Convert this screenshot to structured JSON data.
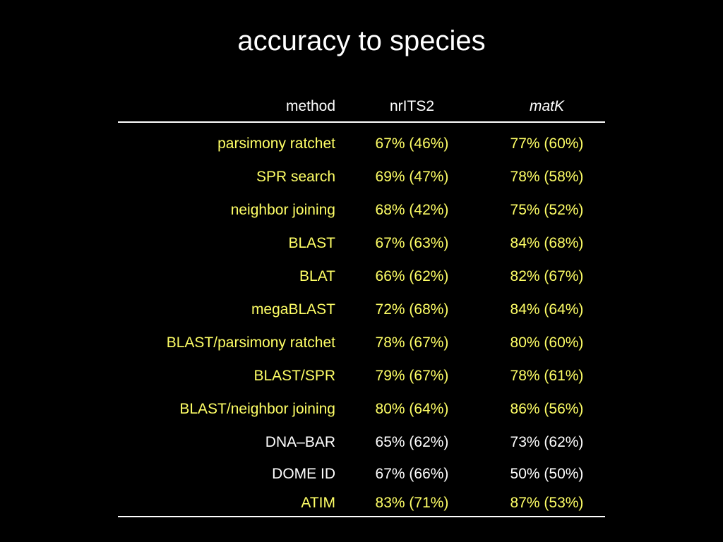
{
  "title": "accuracy to species",
  "colors": {
    "background": "#000000",
    "white_text": "#ffffff",
    "highlight_text": "#ffff66"
  },
  "table": {
    "headers": [
      "method",
      "nrITS2",
      "matK"
    ],
    "rows": [
      {
        "method": "parsimony ratchet",
        "nrITS2": "67% (46%)",
        "matK": "77% (60%)",
        "color": "yellow"
      },
      {
        "method": "SPR search",
        "nrITS2": "69% (47%)",
        "matK": "78% (58%)",
        "color": "yellow"
      },
      {
        "method": "neighbor joining",
        "nrITS2": "68% (42%)",
        "matK": "75% (52%)",
        "color": "yellow"
      },
      {
        "method": "BLAST",
        "nrITS2": "67% (63%)",
        "matK": "84% (68%)",
        "color": "yellow"
      },
      {
        "method": "BLAT",
        "nrITS2": "66% (62%)",
        "matK": "82% (67%)",
        "color": "yellow"
      },
      {
        "method": "megaBLAST",
        "nrITS2": "72% (68%)",
        "matK": "84% (64%)",
        "color": "yellow"
      },
      {
        "method": "BLAST/parsimony ratchet",
        "nrITS2": "78% (67%)",
        "matK": "80% (60%)",
        "color": "yellow"
      },
      {
        "method": "BLAST/SPR",
        "nrITS2": "79% (67%)",
        "matK": "78% (61%)",
        "color": "yellow"
      },
      {
        "method": "BLAST/neighbor joining",
        "nrITS2": "80% (64%)",
        "matK": "86% (56%)",
        "color": "yellow"
      },
      {
        "method": "DNA–BAR",
        "nrITS2": "65% (62%)",
        "matK": "73% (62%)",
        "color": "white"
      },
      {
        "method": "DOME ID",
        "nrITS2": "67% (66%)",
        "matK": "50% (50%)",
        "color": "white"
      },
      {
        "method": "ATIM",
        "nrITS2": "83% (71%)",
        "matK": "87% (53%)",
        "color": "yellow"
      }
    ]
  }
}
